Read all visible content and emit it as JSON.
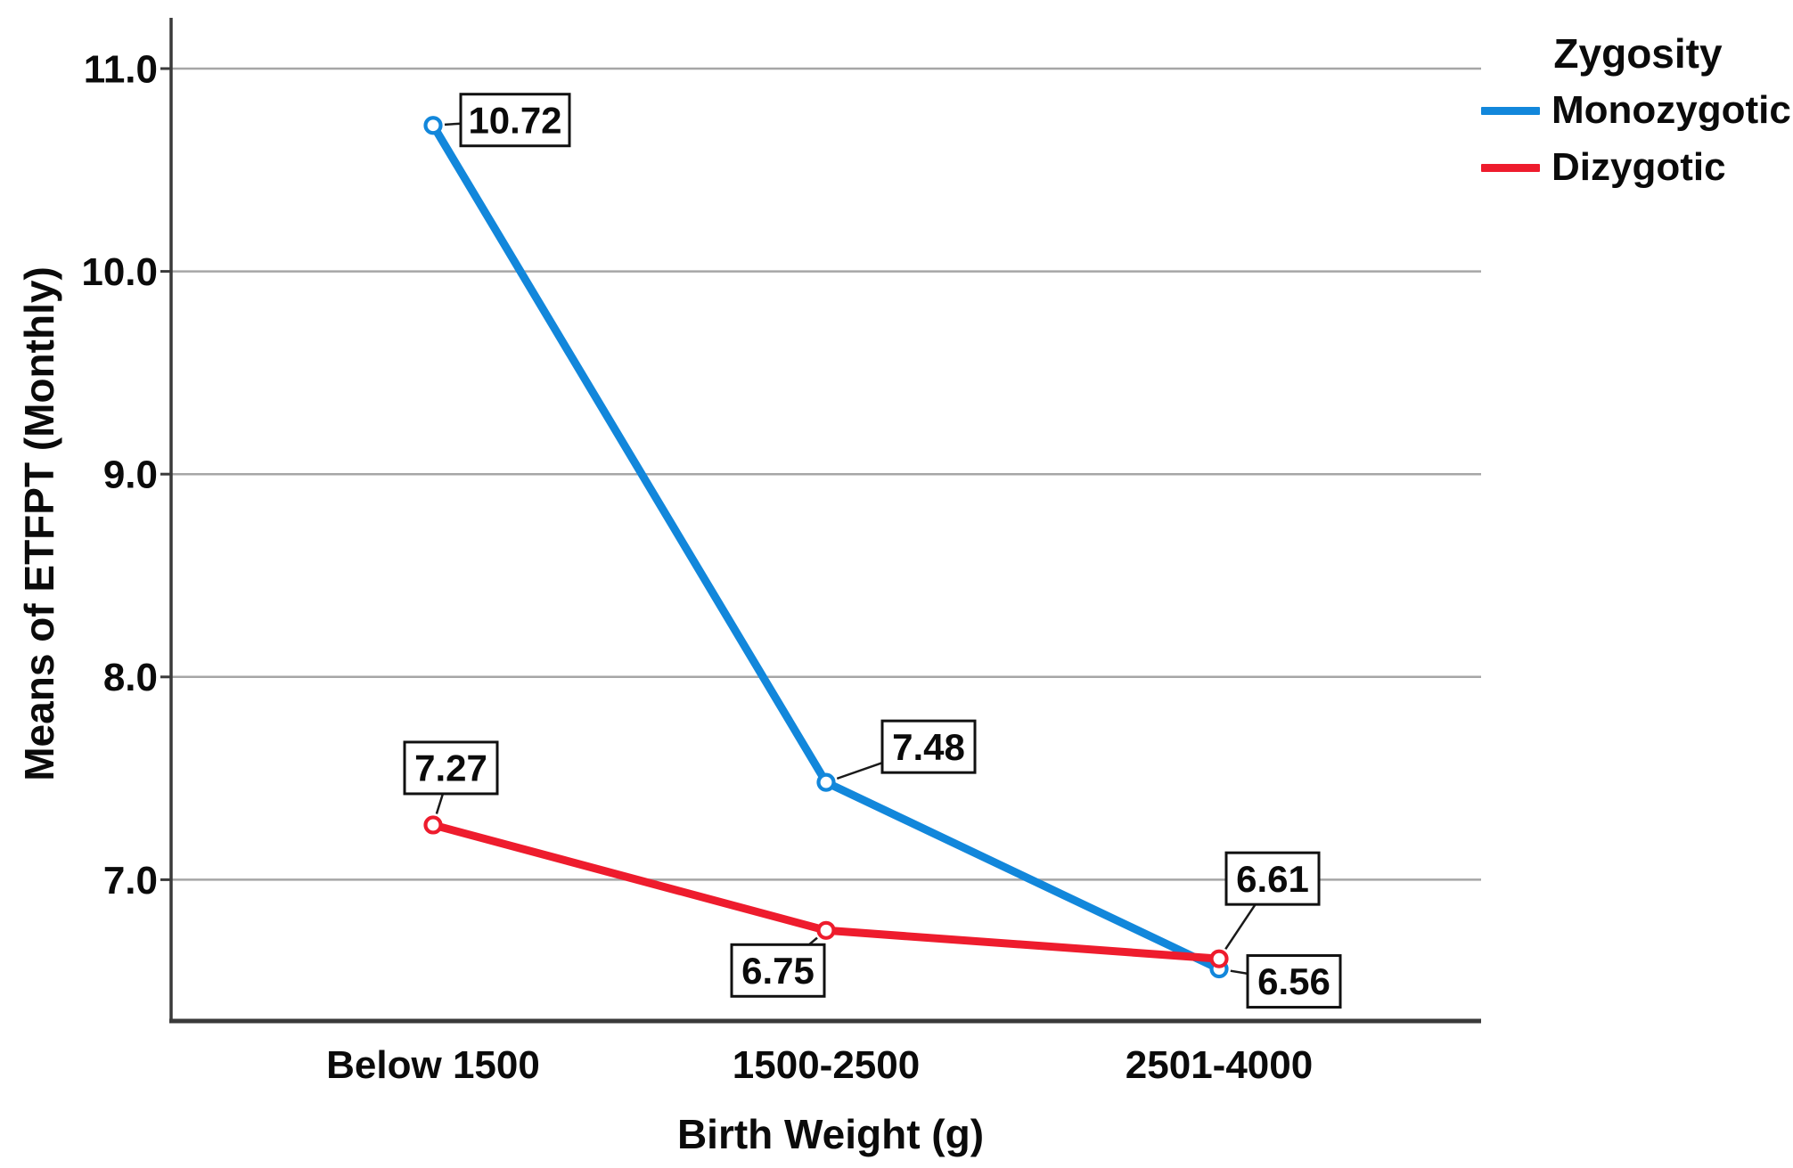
{
  "chart_data": {
    "type": "line",
    "title": "",
    "xlabel": "Birth Weight (g)",
    "ylabel": "Means of ETFPT (Monthly)",
    "categories": [
      "Below 1500",
      "1500-2500",
      "2501-4000"
    ],
    "y_axis": {
      "ticks": [
        11.0,
        10.0,
        9.0,
        8.0,
        7.0
      ],
      "tick_labels": [
        "11.0",
        "10.0",
        "9.0",
        "8.0",
        "7.0"
      ],
      "range_shown": [
        6.3,
        11.25
      ],
      "grid": true
    },
    "legend": {
      "title": "Zygosity",
      "position": "top-right",
      "entries": [
        {
          "name": "Monozygotic",
          "color": "#1287DB"
        },
        {
          "name": "Dizygotic",
          "color": "#EE1C2D"
        }
      ]
    },
    "series": [
      {
        "name": "Monozygotic",
        "color": "#1287DB",
        "values": [
          10.72,
          7.48,
          6.56
        ],
        "point_labels": [
          "10.72",
          "7.48",
          "6.56"
        ],
        "label_offsets": [
          [
            92,
            -6
          ],
          [
            115,
            -40
          ],
          [
            84,
            14
          ]
        ]
      },
      {
        "name": "Dizygotic",
        "color": "#EE1C2D",
        "values": [
          7.27,
          6.75,
          6.61
        ],
        "point_labels": [
          "7.27",
          "6.75",
          "6.61"
        ],
        "label_offsets": [
          [
            20,
            -64
          ],
          [
            -54,
            45
          ],
          [
            60,
            -90
          ]
        ]
      }
    ]
  },
  "colors": {
    "grid": "#A6A6A6",
    "axis": "#3A3A3A",
    "label_box_border": "#111111",
    "label_box_fill": "#FFFFFF",
    "connector": "#1a1a1a",
    "text": "#0B0B0B",
    "background": "#FFFFFF"
  }
}
